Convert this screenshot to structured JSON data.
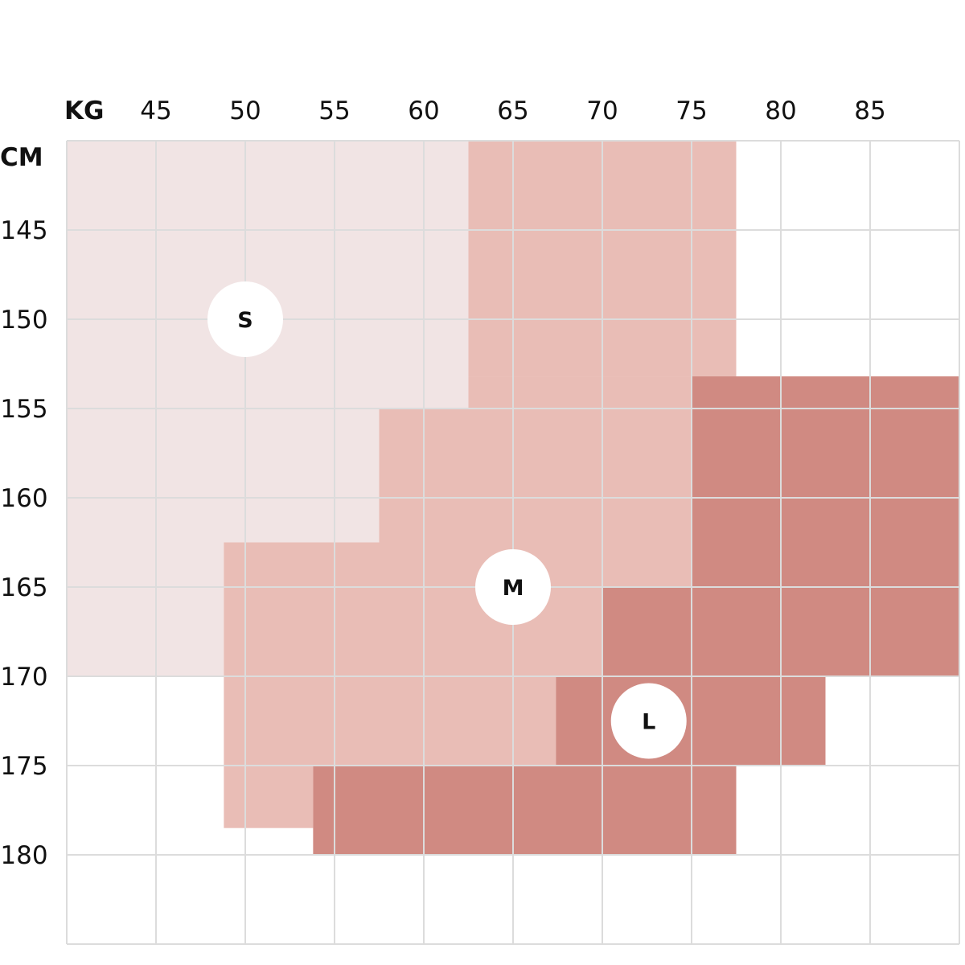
{
  "chart_data": {
    "type": "heatmap",
    "x_unit_label": "KG",
    "y_unit_label": "CM",
    "xlim": [
      40,
      90
    ],
    "ylim": [
      140,
      185
    ],
    "x_ticks": [
      45,
      50,
      55,
      60,
      65,
      70,
      75,
      80,
      85
    ],
    "y_ticks": [
      145,
      150,
      155,
      160,
      165,
      170,
      175,
      180
    ],
    "grid": true,
    "grid_color": "#dcdcdc",
    "sizes": [
      {
        "label": "S",
        "color": "#f1e4e4",
        "label_at": {
          "kg": 50,
          "cm": 150
        },
        "regions": [
          {
            "kg": [
              40,
              62.5
            ],
            "cm": [
              140,
              155
            ]
          },
          {
            "kg": [
              40,
              57.5
            ],
            "cm": [
              155,
              162.5
            ]
          },
          {
            "kg": [
              40,
              48.8
            ],
            "cm": [
              162.5,
              170
            ]
          }
        ]
      },
      {
        "label": "M",
        "color": "#e9bdb6",
        "label_at": {
          "kg": 65,
          "cm": 165
        },
        "regions": [
          {
            "kg": [
              62.5,
              77.5
            ],
            "cm": [
              140,
              153.2
            ]
          },
          {
            "kg": [
              62.5,
              75
            ],
            "cm": [
              153.2,
              162.5
            ]
          },
          {
            "kg": [
              57.5,
              62.5
            ],
            "cm": [
              155,
              162.5
            ]
          },
          {
            "kg": [
              48.8,
              75
            ],
            "cm": [
              162.5,
              165
            ]
          },
          {
            "kg": [
              48.8,
              70
            ],
            "cm": [
              165,
              170
            ]
          },
          {
            "kg": [
              48.8,
              67.4
            ],
            "cm": [
              170,
              175
            ]
          },
          {
            "kg": [
              48.8,
              53.8
            ],
            "cm": [
              175,
              178.5
            ]
          }
        ]
      },
      {
        "label": "L",
        "color": "#d08a82",
        "label_at": {
          "kg": 72.6,
          "cm": 172.5
        },
        "regions": [
          {
            "kg": [
              75,
              90
            ],
            "cm": [
              153.2,
              170
            ]
          },
          {
            "kg": [
              70,
              75
            ],
            "cm": [
              165,
              170
            ]
          },
          {
            "kg": [
              67.4,
              82.5
            ],
            "cm": [
              170,
              175
            ]
          },
          {
            "kg": [
              53.8,
              77.5
            ],
            "cm": [
              175,
              180
            ]
          }
        ]
      }
    ]
  }
}
